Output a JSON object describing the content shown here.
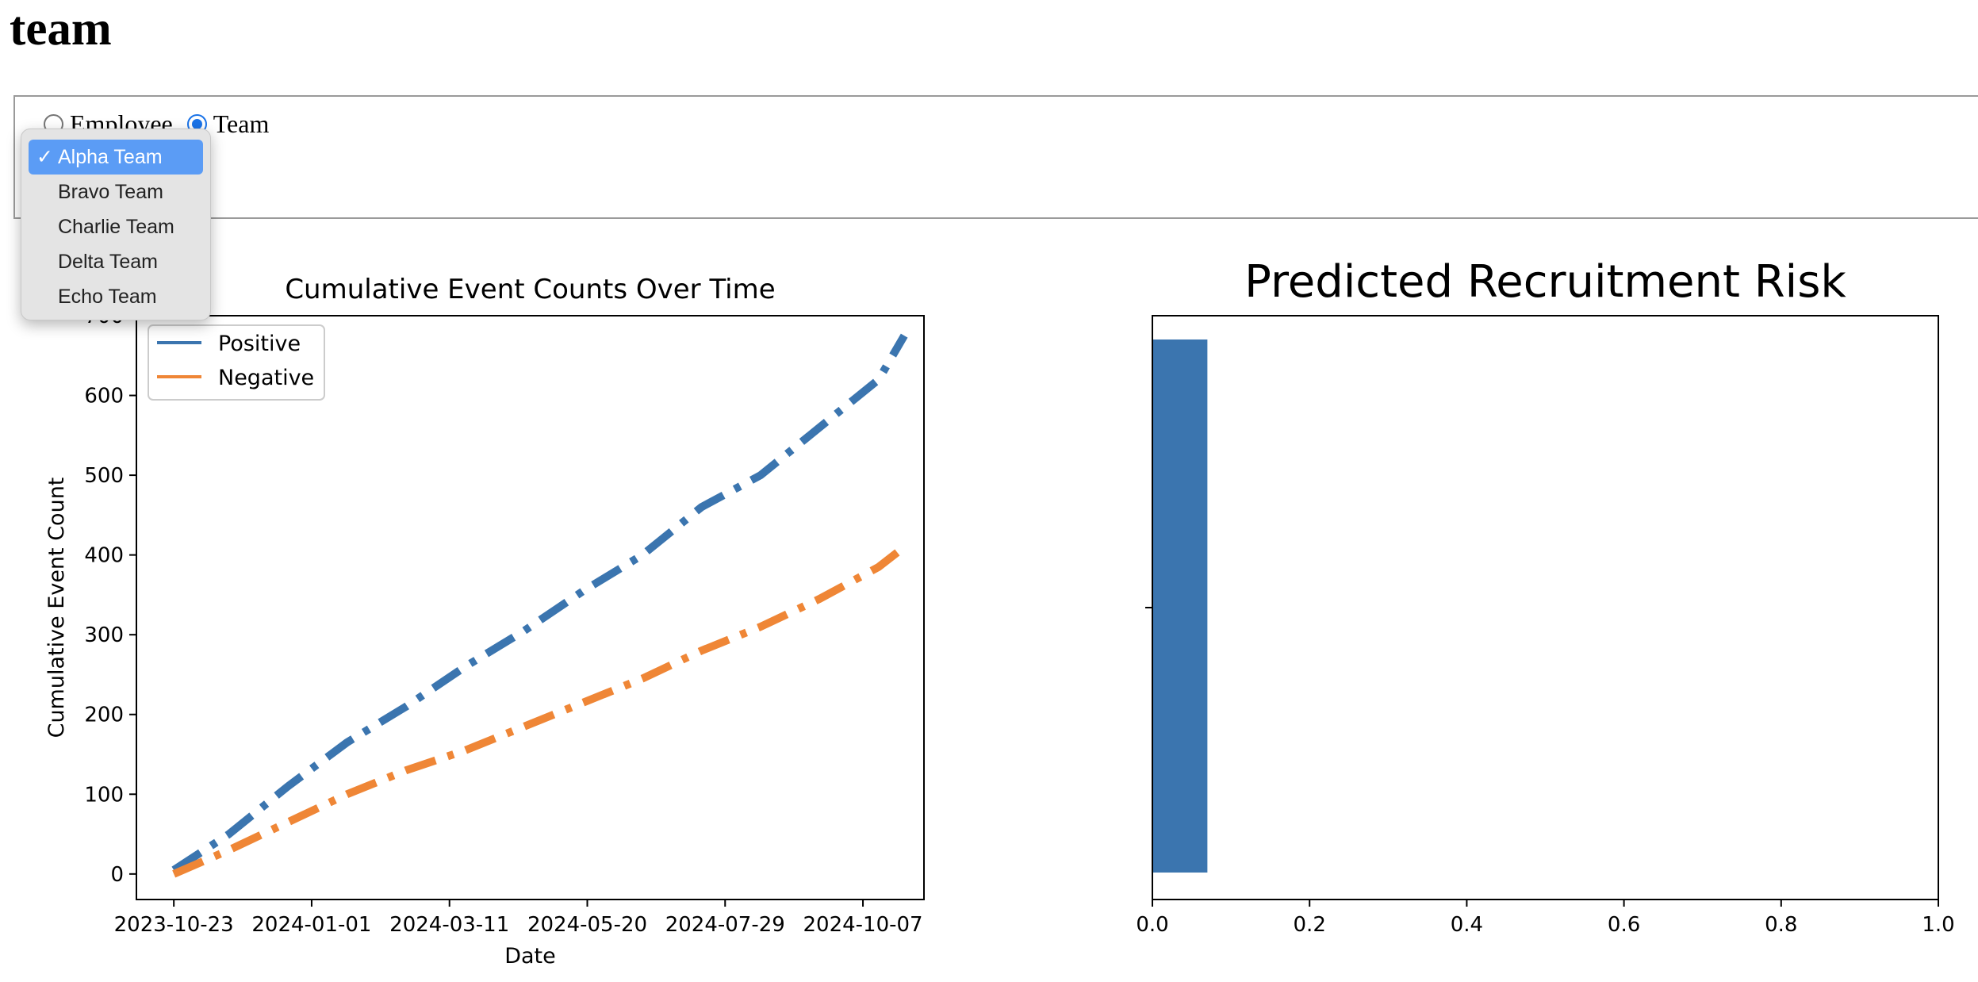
{
  "page": {
    "title": "team"
  },
  "view_selector": {
    "options": [
      {
        "label": "Employee",
        "checked": false
      },
      {
        "label": "Team",
        "checked": true
      }
    ]
  },
  "team_select": {
    "selected": "Alpha Team",
    "options": [
      "Alpha Team",
      "Bravo Team",
      "Charlie Team",
      "Delta Team",
      "Echo Team"
    ]
  },
  "chart_data": [
    {
      "type": "line",
      "title": "Cumulative Event Counts Over Time",
      "xlabel": "Date",
      "ylabel": "Cumulative Event Count",
      "x_ticks": [
        "2023-10-23",
        "2024-01-01",
        "2024-03-11",
        "2024-05-20",
        "2024-07-29",
        "2024-10-07"
      ],
      "y_ticks": [
        0,
        100,
        200,
        300,
        400,
        500,
        600,
        700
      ],
      "xlim": [
        "2023-10-04",
        "2024-11-07"
      ],
      "ylim": [
        -32,
        700
      ],
      "legend": "upper-left",
      "line_style": "dashdot",
      "series": [
        {
          "name": "Positive",
          "color": "#3b75af",
          "x": [
            "2023-10-23",
            "2023-11-20",
            "2023-12-20",
            "2024-01-19",
            "2024-02-18",
            "2024-03-19",
            "2024-04-18",
            "2024-05-18",
            "2024-06-17",
            "2024-07-17",
            "2024-08-16",
            "2024-09-15",
            "2024-10-15",
            "2024-10-28"
          ],
          "y": [
            5,
            50,
            110,
            165,
            210,
            260,
            305,
            355,
            400,
            460,
            500,
            560,
            620,
            675
          ]
        },
        {
          "name": "Negative",
          "color": "#ef8636",
          "x": [
            "2023-10-23",
            "2023-11-20",
            "2023-12-20",
            "2024-01-19",
            "2024-02-18",
            "2024-03-19",
            "2024-04-18",
            "2024-05-18",
            "2024-06-17",
            "2024-07-17",
            "2024-08-16",
            "2024-09-15",
            "2024-10-15",
            "2024-10-28"
          ],
          "y": [
            0,
            30,
            65,
            100,
            130,
            155,
            185,
            215,
            245,
            280,
            310,
            345,
            385,
            410
          ]
        }
      ]
    },
    {
      "type": "bar",
      "orientation": "horizontal",
      "title": "Predicted Recruitment Risk",
      "categories": [
        ""
      ],
      "values": [
        0.07
      ],
      "color": "#3b75af",
      "xlim": [
        0.0,
        1.0
      ],
      "x_ticks": [
        "0.0",
        "0.2",
        "0.4",
        "0.6",
        "0.8",
        "1.0"
      ]
    }
  ]
}
